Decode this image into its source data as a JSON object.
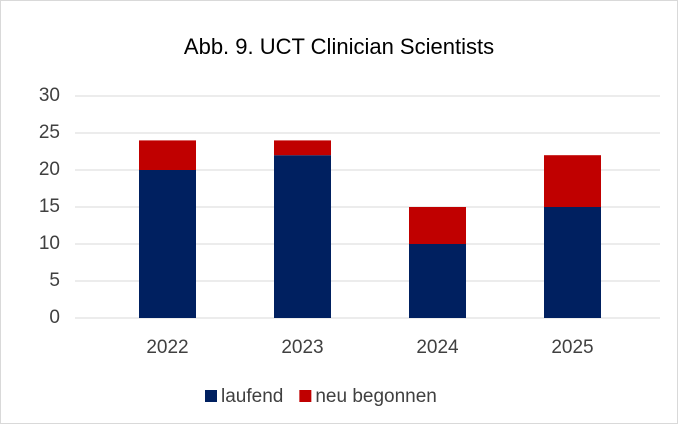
{
  "chart_data": {
    "type": "stacked_bar",
    "title": "Abb. 9. UCT Clinician Scientists",
    "categories": [
      "2022",
      "2023",
      "2024",
      "2025"
    ],
    "series": [
      {
        "name": "laufend",
        "color": "#002060",
        "values": [
          20,
          22,
          10,
          15
        ]
      },
      {
        "name": "neu begonnen",
        "color": "#c00000",
        "values": [
          4,
          2,
          5,
          7
        ]
      }
    ],
    "ylim": [
      0,
      30
    ],
    "yticks": [
      0,
      5,
      10,
      15,
      20,
      25,
      30
    ],
    "grid": true,
    "legend": "bottom"
  }
}
